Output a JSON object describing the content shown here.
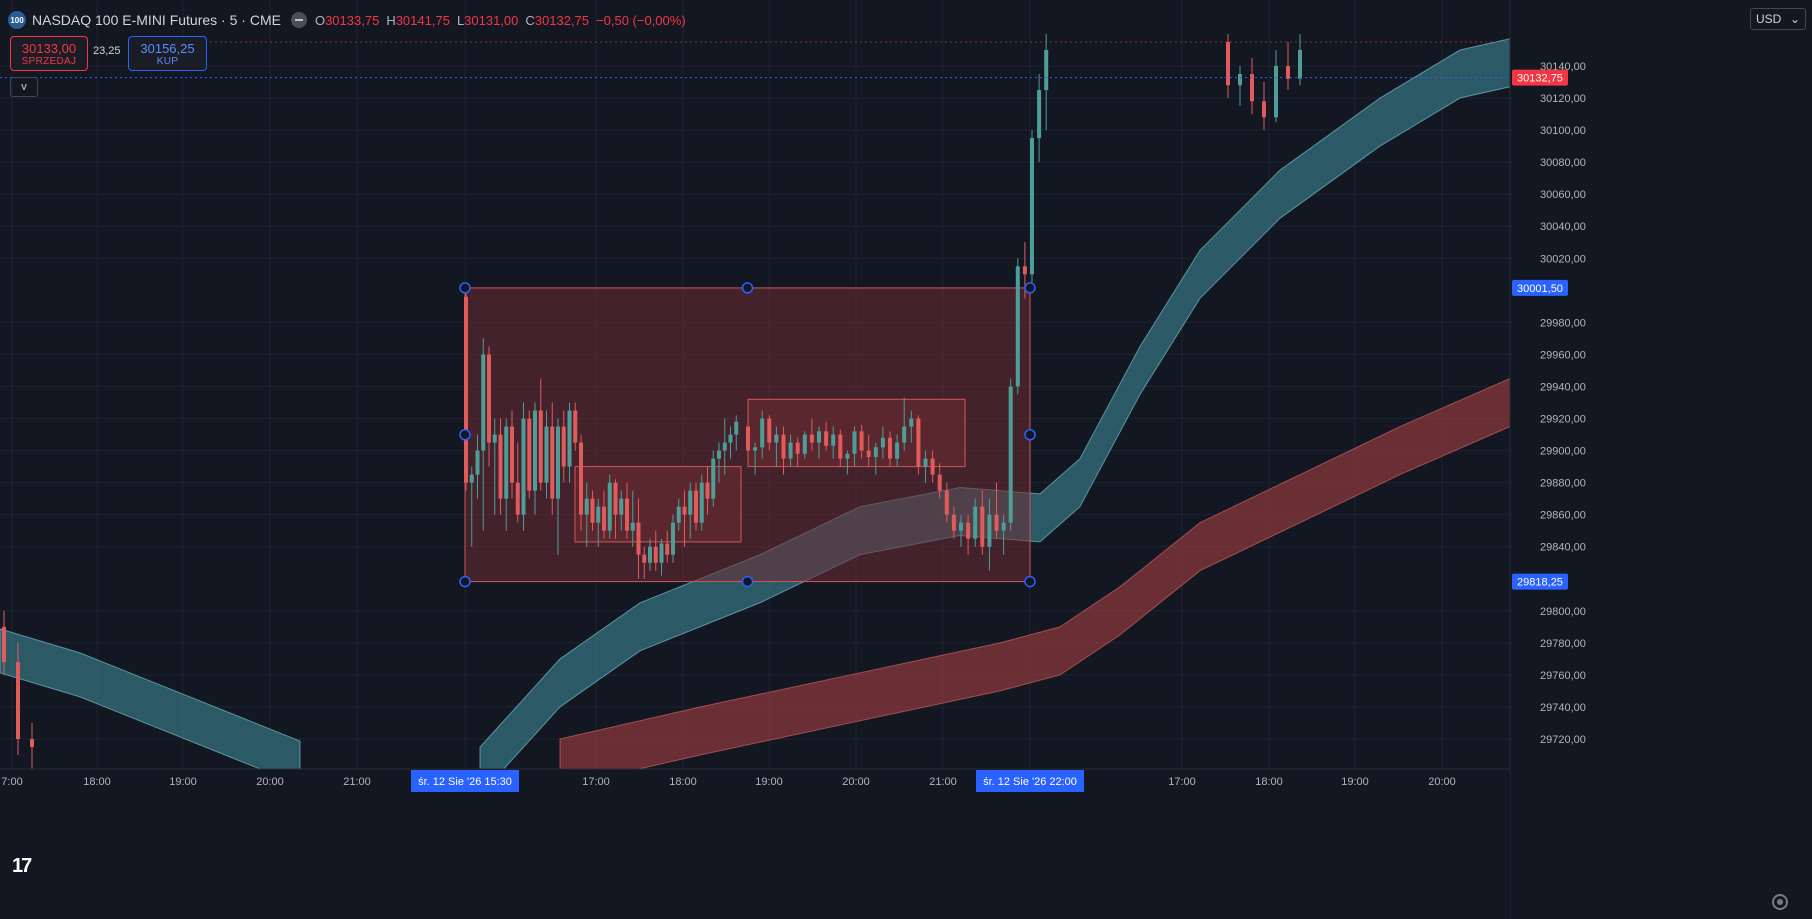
{
  "header": {
    "symbol_badge": "100",
    "symbol_title": "NASDAQ 100 E-MINI Futures · 5 · CME",
    "ohlc": [
      {
        "label": "O",
        "value": "30133,75"
      },
      {
        "label": "H",
        "value": "30141,75"
      },
      {
        "label": "L",
        "value": "30131,00"
      },
      {
        "label": "C",
        "value": "30132,75"
      }
    ],
    "change": "−0,50 (−0,00%)",
    "sell_price": "30133,00",
    "sell_label": "SPRZEDAJ",
    "spread": "23,25",
    "buy_price": "30156,25",
    "buy_label": "KUP",
    "collapse_icon": "v",
    "currency": "USD",
    "logo_text": "17"
  },
  "colors": {
    "background": "#131722",
    "grid": "#1f2330",
    "up": "#4f9d98",
    "down": "#e05b5b",
    "band_teal": "#3a7d8c",
    "band_red": "#b24145",
    "rect_fill": "#6e2b33",
    "rect_stroke": "#d0575b",
    "handle": "#2962ff",
    "last_price": "#f23645",
    "axis_text": "#b2b5be"
  },
  "chart_data": {
    "type": "candlestick",
    "symbol": "NASDAQ 100 E-MINI Futures",
    "interval": "5",
    "exchange": "CME",
    "y_axis": {
      "ticks": [
        "30140,00",
        "30120,00",
        "30100,00",
        "30080,00",
        "30060,00",
        "30040,00",
        "30020,00",
        "29980,00",
        "29960,00",
        "29940,00",
        "29920,00",
        "29900,00",
        "29880,00",
        "29860,00",
        "29840,00",
        "29800,00",
        "29780,00",
        "29760,00",
        "29740,00",
        "29720,00"
      ],
      "ylim": [
        29710,
        30155
      ],
      "markers": [
        {
          "label": "30132,75",
          "value": 30132.75,
          "kind": "last"
        },
        {
          "label": "30001,50",
          "value": 30001.5,
          "kind": "selection"
        },
        {
          "label": "29818,25",
          "value": 29818.25,
          "kind": "selection"
        }
      ]
    },
    "x_axis": {
      "labels": [
        "7:00",
        "18:00",
        "19:00",
        "20:00",
        "21:00",
        "śr. 12 Sie '26   15:30",
        "17:00",
        "18:00",
        "19:00",
        "20:00",
        "21:00",
        "śr. 12 Sie '26   22:00",
        "17:00",
        "18:00",
        "19:00",
        "20:00"
      ],
      "highlighted": [
        "śr. 12 Sie '26   15:30",
        "śr. 12 Sie '26   22:00"
      ]
    },
    "rectangles": [
      {
        "name": "outer-range",
        "x_from": "15:30",
        "x_to": "22:00",
        "top": 30001.5,
        "bottom": 29818.25,
        "selected": true
      },
      {
        "name": "lower-range",
        "x_from": "16:45",
        "x_to": "18:40",
        "top": 29890,
        "bottom": 29843
      },
      {
        "name": "upper-range",
        "x_from": "18:45",
        "x_to": "21:15",
        "top": 29932,
        "bottom": 29890
      }
    ],
    "bands": [
      {
        "name": "teal-band",
        "color": "#3a7d8c"
      },
      {
        "name": "red-band",
        "color": "#b24145"
      }
    ],
    "candles_region1": [
      [
        29996,
        29998,
        29875,
        29880
      ],
      [
        29880,
        29890,
        29840,
        29885
      ],
      [
        29885,
        29910,
        29870,
        29900
      ],
      [
        29900,
        29970,
        29850,
        29960
      ],
      [
        29960,
        29965,
        29890,
        29905
      ],
      [
        29905,
        29920,
        29860,
        29910
      ],
      [
        29910,
        29920,
        29860,
        29870
      ],
      [
        29870,
        29920,
        29850,
        29915
      ],
      [
        29915,
        29925,
        29870,
        29880
      ],
      [
        29880,
        29905,
        29855,
        29860
      ],
      [
        29860,
        29930,
        29850,
        29920
      ],
      [
        29920,
        29925,
        29870,
        29875
      ],
      [
        29875,
        29930,
        29860,
        29925
      ],
      [
        29925,
        29945,
        29875,
        29880
      ],
      [
        29880,
        29925,
        29870,
        29915
      ],
      [
        29915,
        29930,
        29860,
        29870
      ],
      [
        29870,
        29920,
        29835,
        29915
      ],
      [
        29915,
        29925,
        29880,
        29890
      ],
      [
        29890,
        29930,
        29880,
        29925
      ],
      [
        29925,
        29930,
        29900,
        29905
      ],
      [
        29905,
        29910,
        29850,
        29860
      ],
      [
        29860,
        29880,
        29840,
        29870
      ],
      [
        29870,
        29875,
        29850,
        29855
      ],
      [
        29855,
        29870,
        29840,
        29865
      ],
      [
        29865,
        29875,
        29845,
        29850
      ],
      [
        29850,
        29885,
        29845,
        29880
      ],
      [
        29880,
        29882,
        29845,
        29860
      ],
      [
        29860,
        29875,
        29850,
        29870
      ],
      [
        29870,
        29880,
        29845,
        29850
      ],
      [
        29850,
        29875,
        29840,
        29855
      ],
      [
        29855,
        29870,
        29820,
        29835
      ],
      [
        29835,
        29840,
        29820,
        29830
      ],
      [
        29830,
        29845,
        29825,
        29840
      ],
      [
        29840,
        29850,
        29825,
        29830
      ],
      [
        29830,
        29845,
        29822,
        29842
      ],
      [
        29842,
        29850,
        29830,
        29835
      ],
      [
        29835,
        29860,
        29830,
        29855
      ],
      [
        29855,
        29870,
        29850,
        29865
      ],
      [
        29865,
        29875,
        29840,
        29860
      ],
      [
        29860,
        29880,
        29845,
        29875
      ],
      [
        29875,
        29880,
        29850,
        29855
      ],
      [
        29855,
        29885,
        29850,
        29880
      ],
      [
        29880,
        29890,
        29860,
        29870
      ],
      [
        29870,
        29900,
        29865,
        29895
      ],
      [
        29895,
        29905,
        29880,
        29900
      ],
      [
        29900,
        29920,
        29885,
        29905
      ],
      [
        29905,
        29915,
        29895,
        29910
      ],
      [
        29910,
        29922,
        29900,
        29918
      ]
    ],
    "candles_region2": [
      [
        29915,
        29920,
        29895,
        29900
      ],
      [
        29900,
        29905,
        29885,
        29902
      ],
      [
        29902,
        29925,
        29895,
        29920
      ],
      [
        29920,
        29922,
        29900,
        29905
      ],
      [
        29905,
        29915,
        29890,
        29910
      ],
      [
        29910,
        29915,
        29885,
        29895
      ],
      [
        29895,
        29910,
        29890,
        29905
      ],
      [
        29905,
        29908,
        29890,
        29898
      ],
      [
        29898,
        29912,
        29895,
        29910
      ],
      [
        29910,
        29920,
        29900,
        29905
      ],
      [
        29905,
        29915,
        29895,
        29912
      ],
      [
        29912,
        29918,
        29900,
        29903
      ],
      [
        29903,
        29915,
        29895,
        29910
      ],
      [
        29910,
        29913,
        29890,
        29895
      ],
      [
        29895,
        29900,
        29885,
        29898
      ],
      [
        29898,
        29915,
        29890,
        29912
      ],
      [
        29912,
        29916,
        29895,
        29900
      ],
      [
        29900,
        29910,
        29890,
        29896
      ],
      [
        29896,
        29905,
        29885,
        29902
      ],
      [
        29902,
        29915,
        29895,
        29908
      ],
      [
        29908,
        29912,
        29890,
        29895
      ],
      [
        29895,
        29910,
        29890,
        29905
      ],
      [
        29905,
        29933,
        29900,
        29915
      ],
      [
        29915,
        29925,
        29905,
        29920
      ],
      [
        29920,
        29922,
        29885,
        29890
      ],
      [
        29890,
        29900,
        29880,
        29895
      ],
      [
        29895,
        29900,
        29880,
        29885
      ],
      [
        29885,
        29892,
        29870,
        29875
      ],
      [
        29875,
        29880,
        29855,
        29860
      ],
      [
        29860,
        29865,
        29845,
        29850
      ],
      [
        29850,
        29860,
        29840,
        29855
      ],
      [
        29855,
        29860,
        29835,
        29845
      ],
      [
        29845,
        29870,
        29840,
        29865
      ],
      [
        29865,
        29875,
        29835,
        29840
      ],
      [
        29840,
        29870,
        29825,
        29860
      ],
      [
        29860,
        29880,
        29845,
        29850
      ],
      [
        29850,
        29860,
        29835,
        29855
      ],
      [
        29855,
        29945,
        29850,
        29940
      ],
      [
        29940,
        30020,
        29935,
        30015
      ],
      [
        30015,
        30030,
        29995,
        30010
      ],
      [
        30010,
        30100,
        30005,
        30095
      ],
      [
        30095,
        30135,
        30080,
        30125
      ],
      [
        30125,
        30160,
        30100,
        30150
      ]
    ],
    "candles_region3": [
      [
        30155,
        30160,
        30120,
        30128
      ],
      [
        30128,
        30140,
        30115,
        30135
      ],
      [
        30135,
        30145,
        30110,
        30118
      ],
      [
        30118,
        30130,
        30100,
        30108
      ],
      [
        30108,
        30150,
        30105,
        30140
      ],
      [
        30140,
        30155,
        30125,
        30132
      ],
      [
        30132,
        30160,
        30128,
        30150
      ]
    ],
    "candles_left": [
      [
        29790,
        29800,
        29760,
        29768
      ],
      [
        29768,
        29780,
        29710,
        29720
      ],
      [
        29720,
        29730,
        29700,
        29715
      ]
    ]
  }
}
